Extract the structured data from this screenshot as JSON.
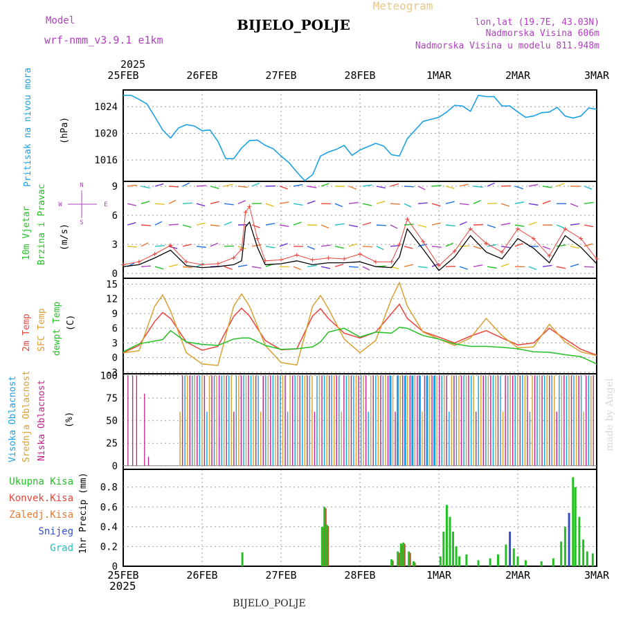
{
  "header": {
    "title": "Meteogram",
    "station": "BIJELO_POLJE",
    "model_label": "Model",
    "model_name": "wrf-nmm_v3.9.1  e1km",
    "lonlat": "lon,lat (19.7E, 43.03N)",
    "elevation": "Nadmorska Visina 606m",
    "model_elevation": "Nadmorska Visina u modelu 811.948m",
    "year": "2025",
    "footer_station": "BIJELO_POLJE",
    "credit": "made by Angel"
  },
  "colors": {
    "pressure": "#1aa0e6",
    "temp2m": "#e8443c",
    "sfc": "#d8a030",
    "dewpt": "#22c022",
    "purple": "#b040c0",
    "highcloud": "#1aa0e6",
    "midcloud": "#d8a030",
    "lowcloud": "#c0208a",
    "totprecip": "#22c022",
    "snow": "#3050d0"
  },
  "x_axis": {
    "ticks": [
      "25FEB",
      "26FEB",
      "27FEB",
      "28FEB",
      "1MAR",
      "2MAR",
      "3MAR"
    ]
  },
  "chart_data": [
    {
      "type": "line",
      "panel": "pressure",
      "ylabel_main": "Pritisak na nivou mora",
      "ylabel_unit": "(hPa)",
      "ylim": [
        1012.8,
        1026.5
      ],
      "yticks": [
        "1016",
        "1020",
        "1024"
      ],
      "x_days": [
        0,
        0.1,
        0.2,
        0.3,
        0.4,
        0.5,
        0.6,
        0.7,
        0.8,
        0.9,
        1.0,
        1.1,
        1.2,
        1.3,
        1.4,
        1.5,
        1.6,
        1.7,
        1.8,
        1.9,
        2.0,
        2.1,
        2.2,
        2.3,
        2.4,
        2.5,
        2.6,
        2.7,
        2.8,
        2.9,
        3.0,
        3.1,
        3.2,
        3.3,
        3.4,
        3.5,
        3.6,
        3.7,
        3.8,
        3.9,
        4.0,
        4.1,
        4.2,
        4.3,
        4.4,
        4.5,
        4.6,
        4.7,
        4.8,
        4.9,
        5.0,
        5.1,
        5.2,
        5.3,
        5.4,
        5.5,
        5.6,
        5.7,
        5.8,
        5.9,
        6.0
      ],
      "series": [
        {
          "values": [
            1025.7,
            1025.7,
            1025.1,
            1024.4,
            1022.5,
            1020.5,
            1019.3,
            1020.8,
            1021.3,
            1021.1,
            1020.4,
            1020.5,
            1018.8,
            1016.2,
            1016.2,
            1017.8,
            1018.9,
            1019.0,
            1018.2,
            1017.7,
            1016.6,
            1015.6,
            1014.2,
            1012.9,
            1013.8,
            1016.6,
            1017.2,
            1017.6,
            1018.2,
            1016.7,
            1017.5,
            1018.0,
            1018.5,
            1018.1,
            1016.8,
            1016.6,
            1019.2,
            1020.5,
            1021.8,
            1022.1,
            1022.4,
            1023.2,
            1024.2,
            1024.1,
            1023.3,
            1025.7,
            1025.5,
            1025.5,
            1024.1,
            1024.1,
            1023.2,
            1022.4,
            1022.6,
            1023.1,
            1023.2,
            1023.9,
            1022.6,
            1022.3,
            1022.6,
            1023.8,
            1023.6
          ]
        }
      ]
    },
    {
      "type": "line",
      "panel": "wind",
      "ylabel_main": "10m Vjetar",
      "ylabel_sub": "Brzina i Pravac",
      "ylabel_unit": "(m/s)",
      "compass": [
        "N",
        "W",
        "E",
        "S"
      ],
      "ylim": [
        -0.5,
        9.5
      ],
      "yticks": [
        "0",
        "3",
        "6",
        "9"
      ],
      "x_days": [
        0,
        0.2,
        0.4,
        0.6,
        0.8,
        1.0,
        1.2,
        1.4,
        1.5,
        1.55,
        1.6,
        1.7,
        1.8,
        2.0,
        2.2,
        2.4,
        2.6,
        2.8,
        3.0,
        3.2,
        3.4,
        3.5,
        3.6,
        3.8,
        4.0,
        4.2,
        4.4,
        4.6,
        4.8,
        5.0,
        5.2,
        5.4,
        5.6,
        5.8,
        6.0
      ],
      "series": [
        {
          "name": "speed",
          "values": [
            0.7,
            0.9,
            1.6,
            2.4,
            0.8,
            0.6,
            0.7,
            0.9,
            1.3,
            4.8,
            5.3,
            2.7,
            0.9,
            1.0,
            1.3,
            0.9,
            1.1,
            1.1,
            1.2,
            0.7,
            0.6,
            1.7,
            4.6,
            2.5,
            0.3,
            1.7,
            3.9,
            2.2,
            1.5,
            3.6,
            2.6,
            1.1,
            3.9,
            2.7,
            1.0
          ]
        },
        {
          "name": "gust",
          "values": [
            0.9,
            1.2,
            2.0,
            2.9,
            1.2,
            0.9,
            1.0,
            1.6,
            2.5,
            6.3,
            6.9,
            3.6,
            1.3,
            1.4,
            1.9,
            1.4,
            1.6,
            1.5,
            2.0,
            1.2,
            1.2,
            3.0,
            5.6,
            3.3,
            0.8,
            2.3,
            4.6,
            3.1,
            2.2,
            4.6,
            3.6,
            1.8,
            4.6,
            3.6,
            1.5
          ]
        }
      ]
    },
    {
      "type": "line",
      "panel": "temperature",
      "ylabel_main": "2m Temp",
      "ylabel_sub": "SFC Temp",
      "ylabel_third": "dewpt Temp",
      "ylabel_unit": "(C)",
      "ylim": [
        -3.3,
        16.2
      ],
      "yticks": [
        "-3",
        "0",
        "3",
        "6",
        "9",
        "12",
        "15"
      ],
      "x_days": [
        0,
        0.2,
        0.4,
        0.5,
        0.6,
        0.8,
        1.0,
        1.2,
        1.4,
        1.5,
        1.6,
        1.8,
        2.0,
        2.2,
        2.4,
        2.5,
        2.6,
        2.8,
        3.0,
        3.2,
        3.4,
        3.5,
        3.6,
        3.8,
        4.0,
        4.2,
        4.4,
        4.6,
        4.8,
        5.0,
        5.2,
        5.4,
        5.6,
        5.8,
        6.0
      ],
      "series": [
        {
          "name": "2m Temp",
          "values": [
            1.0,
            2.5,
            7.4,
            9.2,
            8.0,
            3.2,
            1.5,
            2.3,
            8.4,
            10.1,
            8.5,
            3.5,
            1.6,
            1.8,
            8.5,
            10.0,
            8.0,
            5.0,
            4.0,
            5.2,
            9.0,
            10.9,
            8.0,
            5.3,
            4.2,
            3.0,
            4.4,
            5.5,
            4.0,
            2.6,
            3.0,
            6.0,
            3.8,
            1.7,
            0.5
          ]
        },
        {
          "name": "SFC Temp",
          "values": [
            1.0,
            1.4,
            10.5,
            12.8,
            9.5,
            1.0,
            -1.3,
            -1.6,
            10.5,
            13.0,
            10.5,
            2.5,
            -1.0,
            -1.5,
            10.5,
            12.7,
            10.0,
            3.8,
            1.0,
            3.5,
            12.0,
            15.3,
            10.5,
            5.2,
            3.8,
            2.5,
            4.0,
            8.0,
            4.5,
            2.0,
            2.2,
            6.8,
            3.2,
            1.2,
            0.4
          ]
        },
        {
          "name": "dewpt Temp",
          "values": [
            1.2,
            2.8,
            3.4,
            3.7,
            5.5,
            3.2,
            2.7,
            2.5,
            3.8,
            4.0,
            4.0,
            2.5,
            1.7,
            1.8,
            2.2,
            3.2,
            5.2,
            6.0,
            4.2,
            5.2,
            5.0,
            6.2,
            6.0,
            4.5,
            3.8,
            2.8,
            2.3,
            2.3,
            2.1,
            1.8,
            1.2,
            1.1,
            0.6,
            0.2,
            -1.3
          ]
        }
      ]
    },
    {
      "type": "bar",
      "panel": "cloud",
      "ylabel_main": "Visoka Oblacnost",
      "ylabel_sub": "Srednja Oblacnost",
      "ylabel_third": "Niska Oblacnost",
      "ylabel_unit": "(%)",
      "ylim": [
        -4,
        102
      ],
      "yticks": [
        "0",
        "25",
        "50",
        "75",
        "100"
      ],
      "note": "Dense vertical bars; high cloud (blue), middle cloud (orange), low cloud (magenta), mostly near 100% from late 25FEB onward."
    },
    {
      "type": "bar",
      "panel": "precip",
      "ylabel_unit": "1hr Precip (mm)",
      "legend": [
        "Ukupna Kisa",
        "Konvek.Kisa",
        "Zaledj.Kisa",
        "Snijeg",
        "Grad"
      ],
      "legend_colors": [
        "#22c022",
        "#e8443c",
        "#e87830",
        "#3050d0",
        "#20c0c0"
      ],
      "ylim": [
        0,
        0.98
      ],
      "yticks": [
        "0",
        "0.2",
        "0.4",
        "0.6",
        "0.8"
      ],
      "bars": [
        {
          "x": 1.51,
          "v": 0.14,
          "c": "green"
        },
        {
          "x": 2.52,
          "v": 0.4,
          "c": "green"
        },
        {
          "x": 2.55,
          "v": 0.6,
          "c": "green"
        },
        {
          "x": 2.58,
          "v": 0.42,
          "c": "green"
        },
        {
          "x": 3.4,
          "v": 0.07,
          "c": "green"
        },
        {
          "x": 3.48,
          "v": 0.15,
          "c": "green"
        },
        {
          "x": 3.52,
          "v": 0.23,
          "c": "green"
        },
        {
          "x": 3.55,
          "v": 0.24,
          "c": "green"
        },
        {
          "x": 3.62,
          "v": 0.15,
          "c": "green"
        },
        {
          "x": 3.68,
          "v": 0.05,
          "c": "green"
        },
        {
          "x": 4.02,
          "v": 0.1,
          "c": "green"
        },
        {
          "x": 4.06,
          "v": 0.35,
          "c": "green"
        },
        {
          "x": 4.1,
          "v": 0.62,
          "c": "green"
        },
        {
          "x": 4.14,
          "v": 0.5,
          "c": "green"
        },
        {
          "x": 4.18,
          "v": 0.35,
          "c": "green"
        },
        {
          "x": 4.22,
          "v": 0.2,
          "c": "green"
        },
        {
          "x": 4.26,
          "v": 0.1,
          "c": "green"
        },
        {
          "x": 4.35,
          "v": 0.12,
          "c": "green"
        },
        {
          "x": 4.5,
          "v": 0.06,
          "c": "green"
        },
        {
          "x": 4.65,
          "v": 0.08,
          "c": "green"
        },
        {
          "x": 4.75,
          "v": 0.12,
          "c": "green"
        },
        {
          "x": 4.85,
          "v": 0.22,
          "c": "green"
        },
        {
          "x": 4.9,
          "v": 0.35,
          "c": "blue"
        },
        {
          "x": 4.95,
          "v": 0.18,
          "c": "green"
        },
        {
          "x": 5.0,
          "v": 0.1,
          "c": "green"
        },
        {
          "x": 5.1,
          "v": 0.06,
          "c": "green"
        },
        {
          "x": 5.3,
          "v": 0.05,
          "c": "green"
        },
        {
          "x": 5.45,
          "v": 0.08,
          "c": "green"
        },
        {
          "x": 5.55,
          "v": 0.25,
          "c": "green"
        },
        {
          "x": 5.6,
          "v": 0.4,
          "c": "green"
        },
        {
          "x": 5.65,
          "v": 0.54,
          "c": "blue"
        },
        {
          "x": 5.7,
          "v": 0.9,
          "c": "green"
        },
        {
          "x": 5.73,
          "v": 0.8,
          "c": "green"
        },
        {
          "x": 5.78,
          "v": 0.5,
          "c": "green"
        },
        {
          "x": 5.83,
          "v": 0.27,
          "c": "green"
        },
        {
          "x": 5.88,
          "v": 0.15,
          "c": "green"
        },
        {
          "x": 5.95,
          "v": 0.13,
          "c": "green"
        }
      ]
    }
  ]
}
